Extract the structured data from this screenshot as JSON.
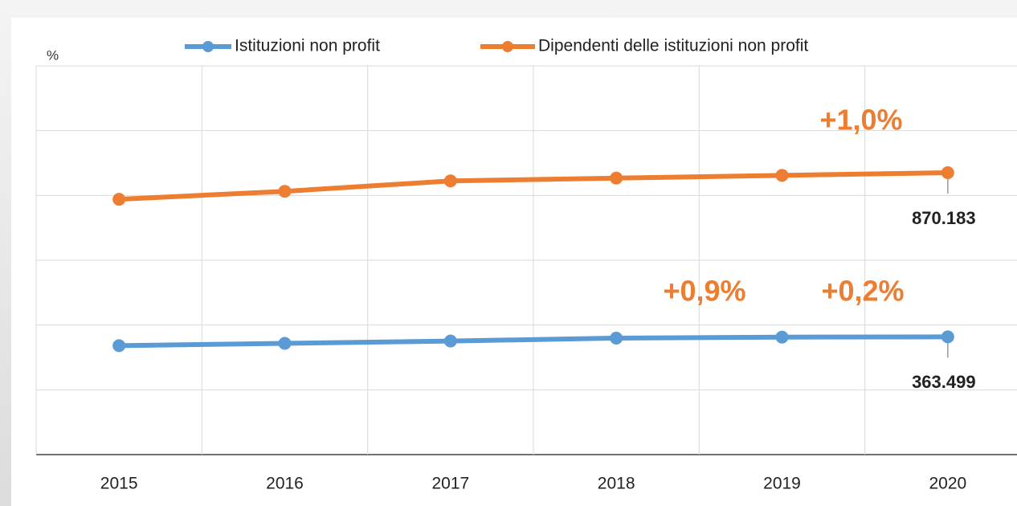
{
  "chart_data": {
    "type": "line",
    "y_label": "%",
    "categories": [
      "2015",
      "2016",
      "2017",
      "2018",
      "2019",
      "2020"
    ],
    "series": [
      {
        "name": "Istituzioni non profit",
        "color": "#5b9bd5",
        "values": [
          336275,
          343432,
          350492,
          359574,
          362634,
          363499
        ],
        "value_labels": [
          null,
          null,
          null,
          null,
          null,
          "363.499"
        ]
      },
      {
        "name": "Dipendenti delle istituzioni non profit",
        "color": "#ed7d31",
        "values": [
          788126,
          812706,
          844775,
          853476,
          861919,
          870183
        ],
        "value_labels": [
          null,
          null,
          null,
          null,
          null,
          "870.183"
        ]
      }
    ],
    "annotations": [
      "+1,0%",
      "+0,9%",
      "+0,2%"
    ],
    "annotation_color": "#ed7d31",
    "ylim": [
      0,
      1200000
    ],
    "yticks": [
      0,
      200000,
      400000,
      600000,
      800000,
      1000000,
      1200000
    ],
    "grid": true,
    "legend": "top"
  }
}
